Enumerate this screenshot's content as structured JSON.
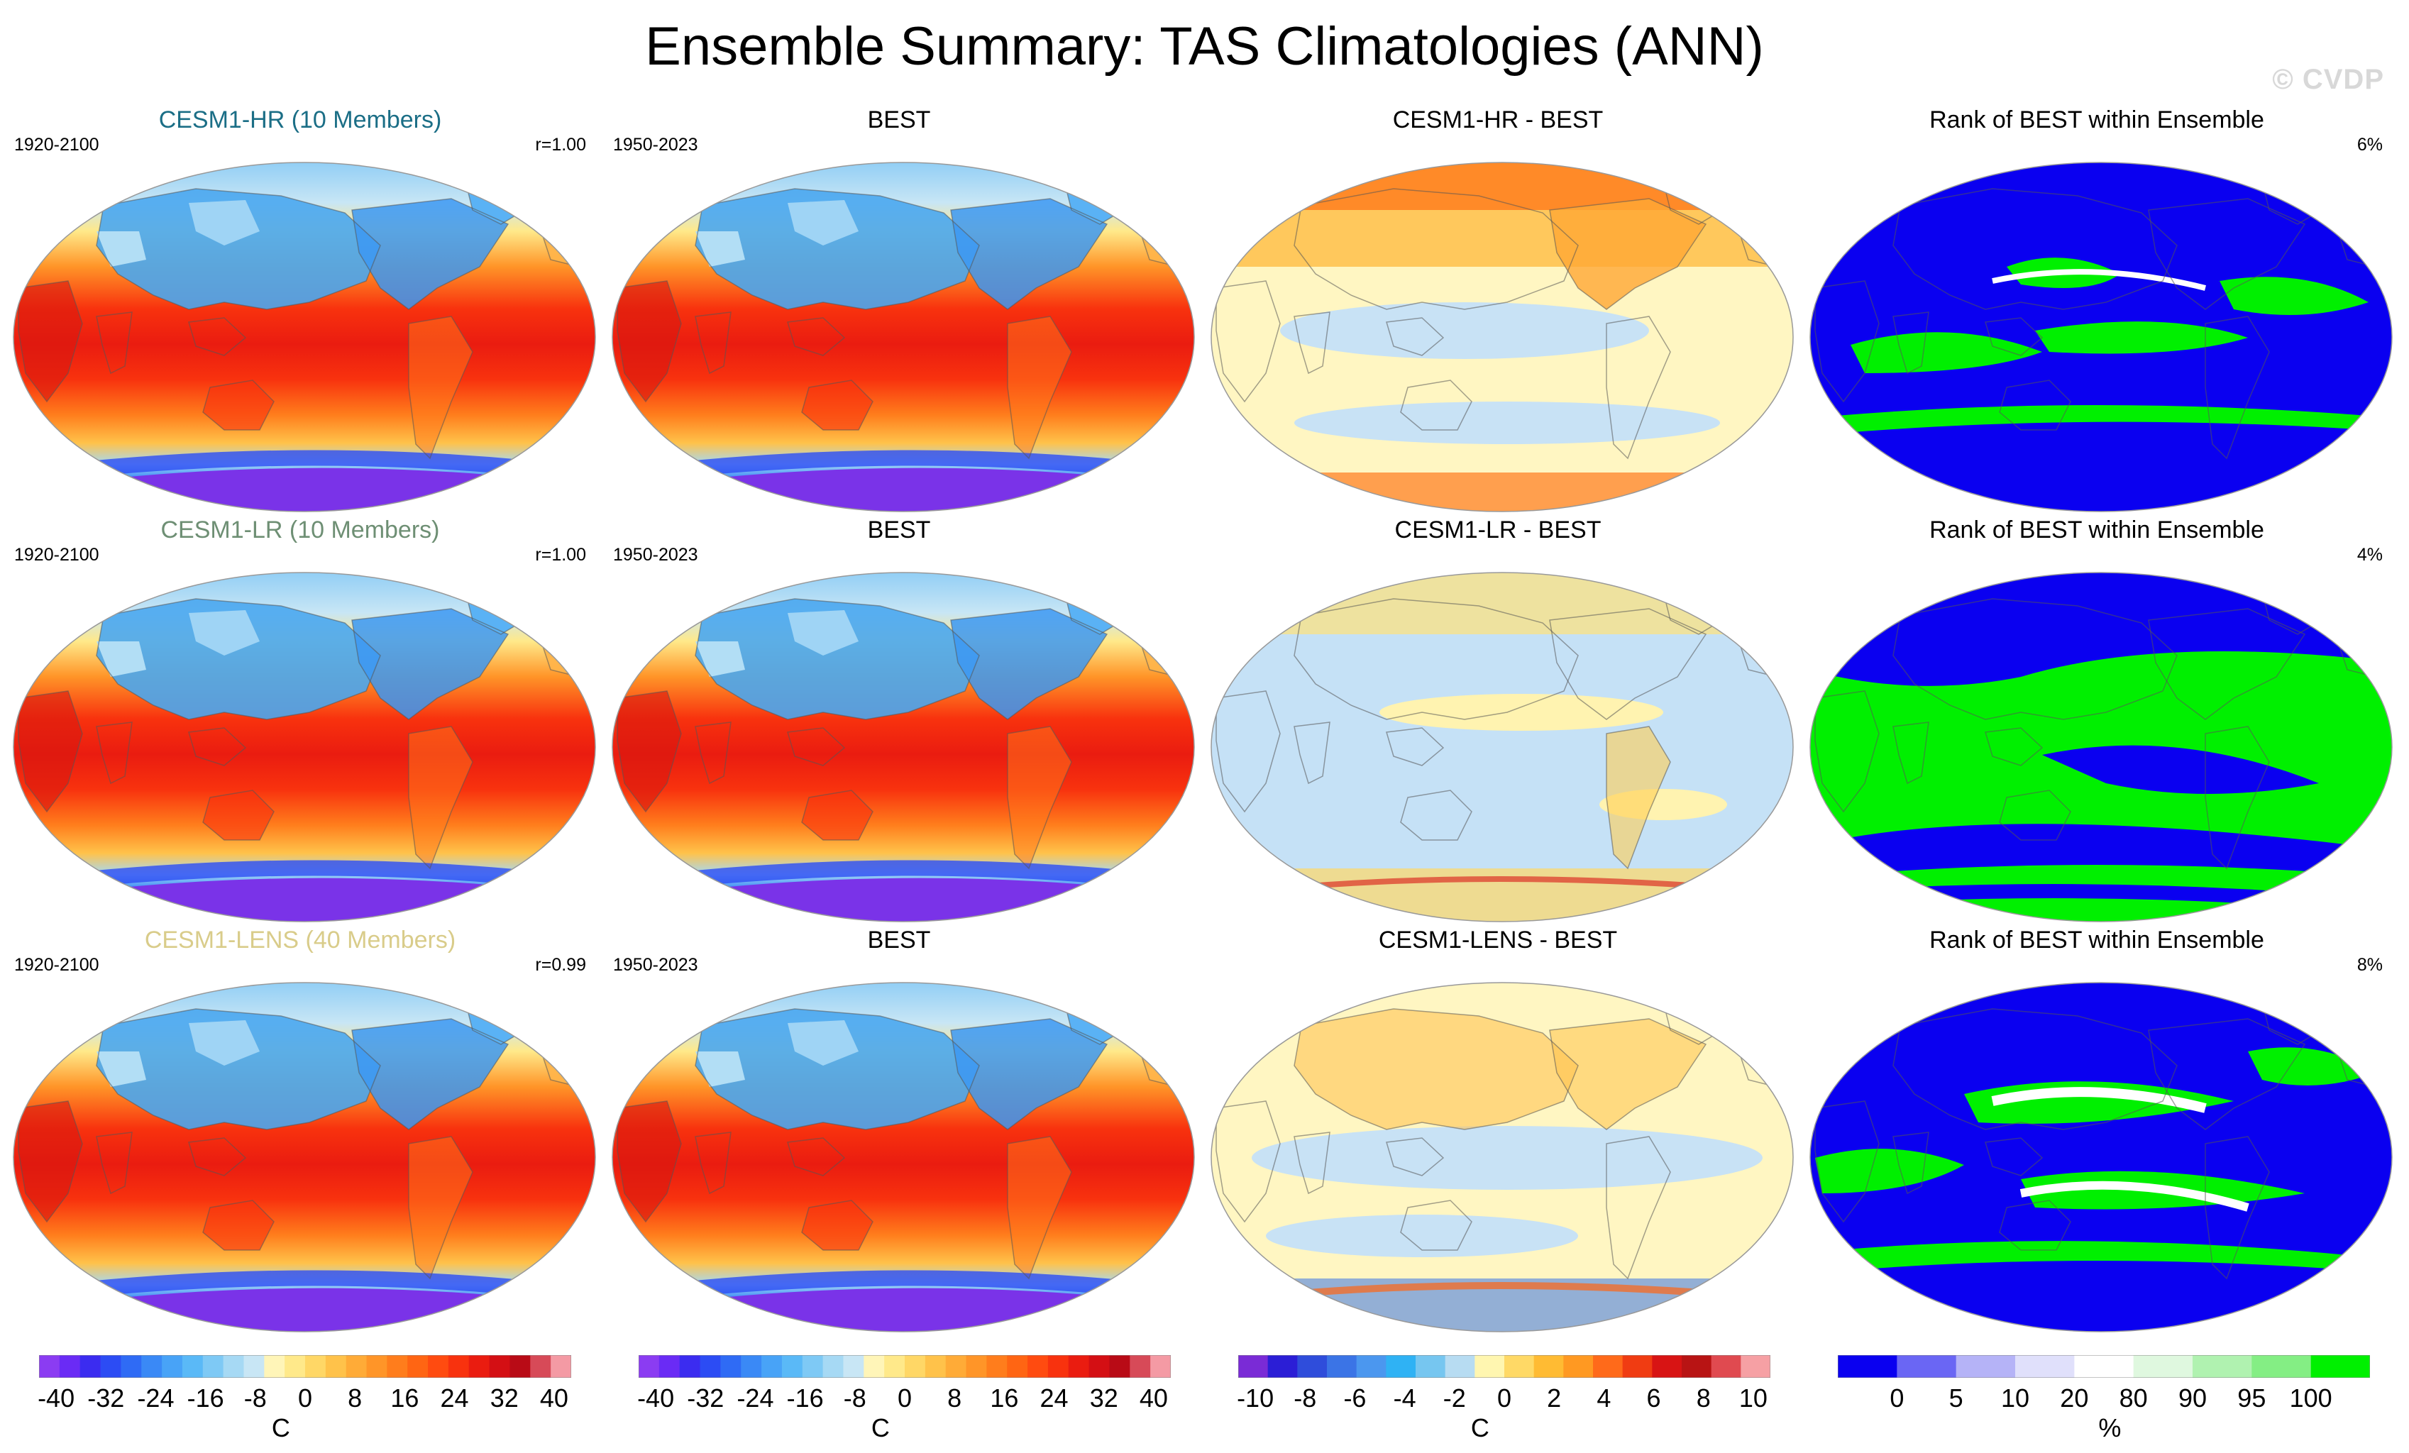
{
  "title": "Ensemble Summary: TAS Climatologies (ANN)",
  "watermark": "© CVDP",
  "rows": [
    {
      "panels": [
        {
          "title": "CESM1-HR (10 Members)",
          "title_color": "#1b6e86",
          "left": "1920-2100",
          "right": "r=1.00",
          "kind": "temp"
        },
        {
          "title": "BEST",
          "title_color": "#000000",
          "left": "1950-2023",
          "right": "",
          "kind": "temp"
        },
        {
          "title": "CESM1-HR - BEST",
          "title_color": "#000000",
          "left": "",
          "right": "",
          "kind": "diff_warm"
        },
        {
          "title": "Rank of BEST within Ensemble",
          "title_color": "#000000",
          "left": "",
          "right": "6%",
          "kind": "rank_blue"
        }
      ]
    },
    {
      "panels": [
        {
          "title": "CESM1-LR (10 Members)",
          "title_color": "#6e8f74",
          "left": "1920-2100",
          "right": "r=1.00",
          "kind": "temp"
        },
        {
          "title": "BEST",
          "title_color": "#000000",
          "left": "1950-2023",
          "right": "",
          "kind": "temp"
        },
        {
          "title": "CESM1-LR - BEST",
          "title_color": "#000000",
          "left": "",
          "right": "",
          "kind": "diff_cool"
        },
        {
          "title": "Rank of BEST within Ensemble",
          "title_color": "#000000",
          "left": "",
          "right": "4%",
          "kind": "rank_green"
        }
      ]
    },
    {
      "panels": [
        {
          "title": "CESM1-LENS (40 Members)",
          "title_color": "#d9cc8a",
          "left": "1920-2100",
          "right": "r=0.99",
          "kind": "temp"
        },
        {
          "title": "BEST",
          "title_color": "#000000",
          "left": "1950-2023",
          "right": "",
          "kind": "temp"
        },
        {
          "title": "CESM1-LENS - BEST",
          "title_color": "#000000",
          "left": "",
          "right": "",
          "kind": "diff_mixed"
        },
        {
          "title": "Rank of BEST within Ensemble",
          "title_color": "#000000",
          "left": "",
          "right": "8%",
          "kind": "rank_mixed"
        }
      ]
    }
  ],
  "colorbars": [
    {
      "unit": "C",
      "ticks": [
        "-40",
        "-32",
        "-24",
        "-16",
        "-8",
        "0",
        "8",
        "16",
        "24",
        "32",
        "40"
      ],
      "colors": [
        "#8b3cf2",
        "#6a2bf5",
        "#3b2cf0",
        "#2c4cf4",
        "#2f6bf5",
        "#3a89f6",
        "#48a3f7",
        "#5ab9f7",
        "#7ec9f5",
        "#a6d9f4",
        "#c8e6f5",
        "#fff5b8",
        "#ffe98a",
        "#ffd766",
        "#ffc24a",
        "#ffab37",
        "#ff9528",
        "#ff7d1c",
        "#ff6513",
        "#ff4b10",
        "#f8320e",
        "#ea1c10",
        "#d40f14",
        "#b90b16",
        "#d74a58",
        "#f49aa4"
      ]
    },
    {
      "unit": "C",
      "ticks": [
        "-40",
        "-32",
        "-24",
        "-16",
        "-8",
        "0",
        "8",
        "16",
        "24",
        "32",
        "40"
      ],
      "colors": [
        "#8b3cf2",
        "#6a2bf5",
        "#3b2cf0",
        "#2c4cf4",
        "#2f6bf5",
        "#3a89f6",
        "#48a3f7",
        "#5ab9f7",
        "#7ec9f5",
        "#a6d9f4",
        "#c8e6f5",
        "#fff5b8",
        "#ffe98a",
        "#ffd766",
        "#ffc24a",
        "#ffab37",
        "#ff9528",
        "#ff7d1c",
        "#ff6513",
        "#ff4b10",
        "#f8320e",
        "#ea1c10",
        "#d40f14",
        "#b90b16",
        "#d74a58",
        "#f49aa4"
      ]
    },
    {
      "unit": "C",
      "ticks": [
        "-10",
        "-8",
        "-6",
        "-4",
        "-2",
        "0",
        "2",
        "4",
        "6",
        "8",
        "10"
      ],
      "colors": [
        "#7a2bd6",
        "#2b1ed6",
        "#2f4ddb",
        "#3b74e6",
        "#4b97ef",
        "#2fb2f4",
        "#76c6f0",
        "#b7dcf2",
        "#fff6b0",
        "#ffd966",
        "#ffbb33",
        "#ff9922",
        "#ff6a1a",
        "#f03c12",
        "#d81414",
        "#b81414",
        "#e04a50",
        "#f6a0a4"
      ]
    },
    {
      "unit": "%",
      "ticks": [
        "0",
        "5",
        "10",
        "20",
        "80",
        "90",
        "95",
        "100"
      ],
      "colors": [
        "#0a00f0",
        "#6a66f4",
        "#b5b3f7",
        "#e0e0fb",
        "#ffffff",
        "#dff8df",
        "#b0f2b0",
        "#84ee84",
        "#00f000"
      ]
    }
  ]
}
